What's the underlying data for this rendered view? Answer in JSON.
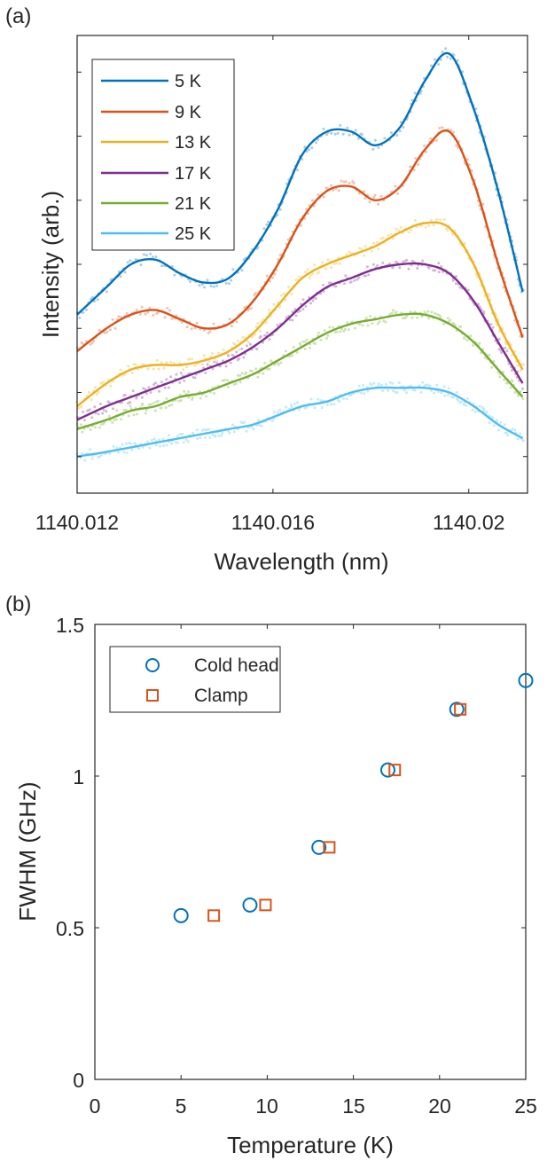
{
  "chart_data": [
    {
      "panel_label": "(a)",
      "type": "line",
      "xlabel": "Wavelength (nm)",
      "ylabel": "Intensity (arb.)",
      "xlim": [
        1140.012,
        1140.0212
      ],
      "ylim": [
        0,
        1
      ],
      "y_tick_labels_visible": false,
      "x_ticks": [
        1140.012,
        1140.016,
        1140.02
      ],
      "x_tick_labels": [
        "1140.012",
        "1140.016",
        "1140.02"
      ],
      "grid": false,
      "legend_position": "top-left",
      "series": [
        {
          "name": "5 K",
          "color": "#0072BD",
          "scatter_color": "#a9cde8",
          "x": [
            1140.012,
            1140.0126,
            1140.0131,
            1140.0136,
            1140.0141,
            1140.0146,
            1140.0151,
            1140.0156,
            1140.0161,
            1140.0166,
            1140.0171,
            1140.0176,
            1140.0181,
            1140.0186,
            1140.0191,
            1140.0196,
            1140.0201,
            1140.0206,
            1140.0211
          ],
          "y": [
            0.39,
            0.45,
            0.5,
            0.51,
            0.48,
            0.46,
            0.47,
            0.53,
            0.62,
            0.74,
            0.79,
            0.79,
            0.76,
            0.8,
            0.9,
            0.96,
            0.84,
            0.66,
            0.44
          ]
        },
        {
          "name": "9 K",
          "color": "#D95319",
          "scatter_color": "#f3c1ad",
          "x": [
            1140.012,
            1140.0126,
            1140.0131,
            1140.0136,
            1140.0141,
            1140.0146,
            1140.0151,
            1140.0156,
            1140.0161,
            1140.0166,
            1140.0171,
            1140.0176,
            1140.0181,
            1140.0186,
            1140.0191,
            1140.0196,
            1140.0201,
            1140.0206,
            1140.0211
          ],
          "y": [
            0.31,
            0.36,
            0.39,
            0.4,
            0.38,
            0.36,
            0.37,
            0.42,
            0.5,
            0.6,
            0.66,
            0.67,
            0.64,
            0.67,
            0.75,
            0.79,
            0.68,
            0.5,
            0.34
          ]
        },
        {
          "name": "13 K",
          "color": "#EDB120",
          "scatter_color": "#f8e3ad",
          "x": [
            1140.012,
            1140.0126,
            1140.0131,
            1140.0136,
            1140.0141,
            1140.0146,
            1140.0151,
            1140.0156,
            1140.0161,
            1140.0166,
            1140.0171,
            1140.0176,
            1140.0181,
            1140.0186,
            1140.0191,
            1140.0196,
            1140.0201,
            1140.0206,
            1140.0211
          ],
          "y": [
            0.19,
            0.24,
            0.27,
            0.28,
            0.28,
            0.29,
            0.31,
            0.35,
            0.41,
            0.47,
            0.5,
            0.52,
            0.54,
            0.57,
            0.59,
            0.58,
            0.5,
            0.37,
            0.27
          ]
        },
        {
          "name": "17 K",
          "color": "#7E2F8E",
          "scatter_color": "#d3b5d9",
          "x": [
            1140.012,
            1140.0126,
            1140.0131,
            1140.0136,
            1140.0141,
            1140.0146,
            1140.0151,
            1140.0156,
            1140.0161,
            1140.0166,
            1140.0171,
            1140.0176,
            1140.0181,
            1140.0186,
            1140.0191,
            1140.0196,
            1140.0201,
            1140.0206,
            1140.0211
          ],
          "y": [
            0.16,
            0.19,
            0.21,
            0.23,
            0.25,
            0.27,
            0.29,
            0.32,
            0.36,
            0.41,
            0.45,
            0.47,
            0.49,
            0.5,
            0.5,
            0.48,
            0.42,
            0.33,
            0.24
          ]
        },
        {
          "name": "21 K",
          "color": "#77AC30",
          "scatter_color": "#cde3b3",
          "x": [
            1140.012,
            1140.0126,
            1140.0131,
            1140.0136,
            1140.0141,
            1140.0146,
            1140.0151,
            1140.0156,
            1140.0161,
            1140.0166,
            1140.0171,
            1140.0176,
            1140.0181,
            1140.0186,
            1140.0191,
            1140.0196,
            1140.0201,
            1140.0206,
            1140.0211
          ],
          "y": [
            0.14,
            0.16,
            0.18,
            0.19,
            0.21,
            0.22,
            0.24,
            0.26,
            0.29,
            0.32,
            0.35,
            0.37,
            0.38,
            0.39,
            0.39,
            0.37,
            0.33,
            0.27,
            0.21
          ]
        },
        {
          "name": "25 K",
          "color": "#4DBEEE",
          "scatter_color": "#c4e9f9",
          "x": [
            1140.012,
            1140.0126,
            1140.0131,
            1140.0136,
            1140.0141,
            1140.0146,
            1140.0151,
            1140.0156,
            1140.0161,
            1140.0166,
            1140.0171,
            1140.0176,
            1140.0181,
            1140.0186,
            1140.0191,
            1140.0196,
            1140.0201,
            1140.0206,
            1140.0211
          ],
          "y": [
            0.08,
            0.09,
            0.1,
            0.11,
            0.12,
            0.13,
            0.14,
            0.15,
            0.17,
            0.19,
            0.2,
            0.22,
            0.23,
            0.23,
            0.23,
            0.22,
            0.19,
            0.15,
            0.12
          ]
        }
      ]
    },
    {
      "panel_label": "(b)",
      "type": "scatter",
      "xlabel": "Temperature (K)",
      "ylabel": "FWHM (GHz)",
      "xlim": [
        0,
        25
      ],
      "ylim": [
        0,
        1.5
      ],
      "x_ticks": [
        0,
        5,
        10,
        15,
        20,
        25
      ],
      "x_tick_labels": [
        "0",
        "5",
        "10",
        "15",
        "20",
        "25"
      ],
      "y_ticks": [
        0,
        0.5,
        1,
        1.5
      ],
      "y_tick_labels": [
        "0",
        "0.5",
        "1",
        "1.5"
      ],
      "grid": false,
      "legend_position": "top-left",
      "series": [
        {
          "name": "Cold head",
          "marker": "circle",
          "color": "#0072BD",
          "x": [
            5,
            9,
            13,
            17,
            21,
            25
          ],
          "y": [
            0.54,
            0.575,
            0.765,
            1.02,
            1.22,
            1.315
          ]
        },
        {
          "name": "Clamp",
          "marker": "square",
          "color": "#D95319",
          "x": [
            6.9,
            9.9,
            13.6,
            17.4,
            21.2
          ],
          "y": [
            0.54,
            0.575,
            0.765,
            1.02,
            1.22
          ]
        }
      ]
    }
  ]
}
